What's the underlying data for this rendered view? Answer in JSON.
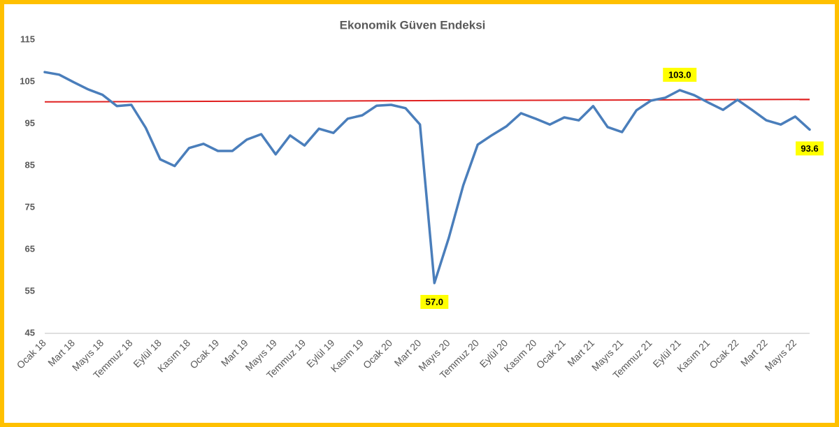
{
  "chart_data": {
    "type": "line",
    "title": "Ekonomik  Güven Endeksi",
    "categories": [
      "Ocak 18",
      null,
      "Mart 18",
      null,
      "Mayıs 18",
      null,
      "Temmuz 18",
      null,
      "Eylül 18",
      null,
      "Kasım 18",
      null,
      "Ocak 19",
      null,
      "Mart 19",
      null,
      "Mayıs 19",
      null,
      "Temmuz 19",
      null,
      "Eylül 19",
      null,
      "Kasım 19",
      null,
      "Ocak 20",
      null,
      "Mart 20",
      null,
      "Mayıs 20",
      null,
      "Temmuz 20",
      null,
      "Eylül 20",
      null,
      "Kasım 20",
      null,
      "Ocak 21",
      null,
      "Mart 21",
      null,
      "Mayıs 21",
      null,
      "Temmuz 21",
      null,
      "Eylül 21",
      null,
      "Kasım 21",
      null,
      "Ocak 22",
      null,
      "Mart 22",
      null,
      "Mayıs 22",
      null
    ],
    "series": [
      {
        "name": "Ekonomik Güven Endeksi",
        "color": "#4a7ebb",
        "values": [
          107.3,
          106.7,
          104.9,
          103.2,
          101.9,
          99.2,
          99.5,
          94.0,
          86.5,
          84.9,
          89.2,
          90.2,
          88.5,
          88.5,
          91.2,
          92.5,
          87.7,
          92.2,
          89.8,
          93.8,
          92.8,
          96.2,
          97.0,
          99.3,
          99.5,
          98.7,
          94.8,
          57.0,
          67.8,
          80.3,
          90.0,
          92.3,
          94.4,
          97.5,
          96.2,
          94.8,
          96.5,
          95.8,
          99.2,
          94.2,
          93.0,
          98.2,
          100.5,
          101.2,
          103.0,
          101.8,
          100.0,
          98.3,
          100.7,
          98.3,
          95.8,
          94.8,
          96.7,
          93.6
        ],
        "value_labels": [
          null,
          null,
          null,
          null,
          null,
          null,
          null,
          null,
          null,
          null,
          null,
          null,
          null,
          null,
          null,
          null,
          null,
          null,
          null,
          null,
          null,
          null,
          null,
          null,
          null,
          null,
          null,
          "57.0",
          null,
          null,
          null,
          null,
          null,
          null,
          null,
          null,
          null,
          null,
          null,
          null,
          null,
          null,
          null,
          null,
          "103.0",
          null,
          null,
          null,
          null,
          null,
          null,
          null,
          null,
          "93.6"
        ],
        "label_background": "#ffff00"
      }
    ],
    "reference_line": {
      "start": 100.2,
      "end": 100.8,
      "color": "#e02020"
    },
    "ylim": [
      45,
      115
    ],
    "yticks": [
      45,
      55,
      65,
      75,
      85,
      95,
      105,
      115
    ],
    "grid": false,
    "legend": false,
    "border_color": "#ffc000"
  }
}
